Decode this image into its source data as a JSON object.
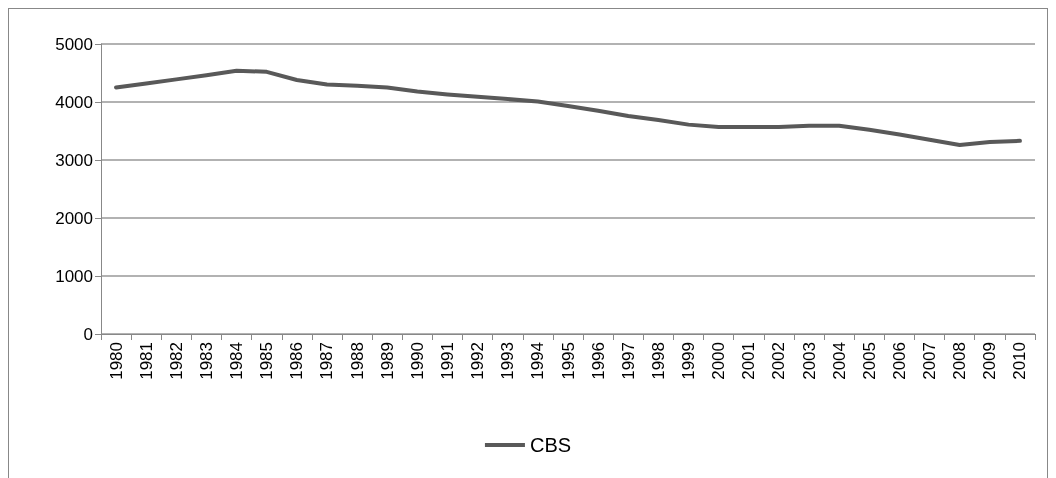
{
  "chart_data": {
    "type": "line",
    "categories": [
      "1980",
      "1981",
      "1982",
      "1983",
      "1984",
      "1985",
      "1986",
      "1987",
      "1988",
      "1989",
      "1990",
      "1991",
      "1992",
      "1993",
      "1994",
      "1995",
      "1996",
      "1997",
      "1998",
      "1999",
      "2000",
      "2001",
      "2002",
      "2003",
      "2004",
      "2005",
      "2006",
      "2007",
      "2008",
      "2009",
      "2010"
    ],
    "series": [
      {
        "name": "CBS",
        "color": "#595959",
        "values": [
          4250,
          4320,
          4390,
          4460,
          4540,
          4520,
          4380,
          4300,
          4280,
          4250,
          4180,
          4130,
          4090,
          4050,
          4010,
          3930,
          3850,
          3760,
          3690,
          3610,
          3570,
          3570,
          3570,
          3590,
          3590,
          3520,
          3440,
          3350,
          3260,
          3310,
          3330
        ]
      }
    ],
    "ylim": [
      0,
      5000
    ],
    "yticks": [
      0,
      1000,
      2000,
      3000,
      4000,
      5000
    ],
    "grid": "y",
    "legend": "bottom",
    "marker": "none",
    "line_style": "solid"
  }
}
